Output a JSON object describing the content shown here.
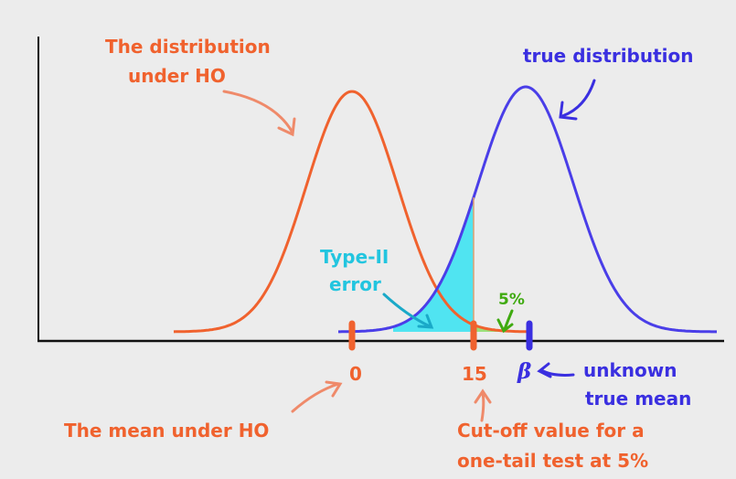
{
  "h0_distribution": [
    "The distribution",
    "under HO"
  ],
  "true_distribution": "true distribution",
  "type_ii_error": [
    "Type-II",
    "error"
  ],
  "alpha": "5%",
  "h0_mean_tick": "0",
  "cutoff_tick": "15",
  "true_mean_tick": "β",
  "true_mean_note": [
    "unknown",
    "true mean"
  ],
  "h0_mean_note": "The mean under HO",
  "cutoff_note": [
    "Cut-off value for a",
    "one-tail test at 5%"
  ]
}
